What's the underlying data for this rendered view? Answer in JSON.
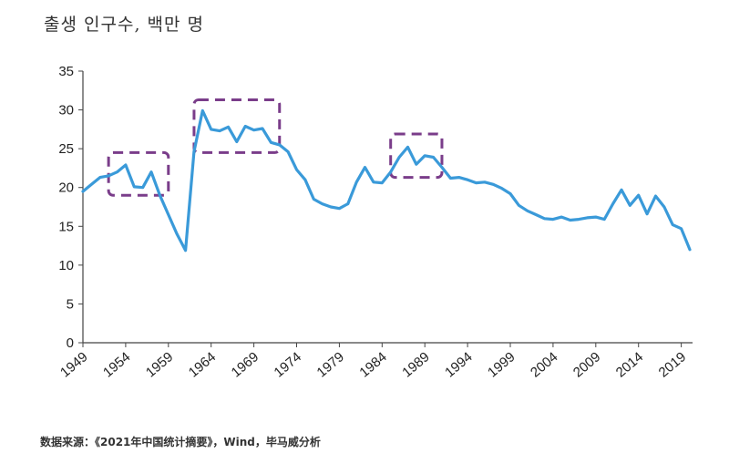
{
  "chart_data": {
    "type": "line",
    "title": "출생 인구수, 백만 명",
    "source": "数据来源：《2021年中国统计摘要》，Wind，毕马威分析",
    "xlabel": "",
    "ylabel": "",
    "ylim": [
      0,
      35
    ],
    "xlim": [
      1949,
      2020
    ],
    "y_ticks": [
      0,
      5,
      10,
      15,
      20,
      25,
      30,
      35
    ],
    "x_ticks": [
      1949,
      1954,
      1959,
      1964,
      1969,
      1974,
      1979,
      1984,
      1989,
      1994,
      1999,
      2004,
      2009,
      2014,
      2019
    ],
    "grid": false,
    "legend": "none",
    "series": [
      {
        "color": "#3a9ad9",
        "x": [
          1949,
          1950,
          1951,
          1952,
          1953,
          1954,
          1955,
          1956,
          1957,
          1958,
          1959,
          1960,
          1961,
          1962,
          1963,
          1964,
          1965,
          1966,
          1967,
          1968,
          1969,
          1970,
          1971,
          1972,
          1973,
          1974,
          1975,
          1976,
          1977,
          1978,
          1979,
          1980,
          1981,
          1982,
          1983,
          1984,
          1985,
          1986,
          1987,
          1988,
          1989,
          1990,
          1991,
          1992,
          1993,
          1994,
          1995,
          1996,
          1997,
          1998,
          1999,
          2000,
          2001,
          2002,
          2003,
          2004,
          2005,
          2006,
          2007,
          2008,
          2009,
          2010,
          2011,
          2012,
          2013,
          2014,
          2015,
          2016,
          2017,
          2018,
          2019,
          2020
        ],
        "values": [
          19.5,
          20.4,
          21.3,
          21.5,
          22.0,
          22.9,
          20.1,
          20.0,
          22.0,
          19.0,
          16.5,
          14.0,
          11.9,
          24.6,
          29.9,
          27.5,
          27.3,
          27.8,
          25.9,
          27.9,
          27.4,
          27.6,
          25.8,
          25.5,
          24.6,
          22.3,
          21.0,
          18.5,
          17.9,
          17.5,
          17.3,
          17.9,
          20.7,
          22.6,
          20.7,
          20.6,
          22.0,
          23.9,
          25.2,
          23.0,
          24.1,
          23.9,
          22.6,
          21.2,
          21.3,
          21.0,
          20.6,
          20.7,
          20.4,
          19.9,
          19.2,
          17.7,
          17.0,
          16.5,
          16.0,
          15.9,
          16.2,
          15.8,
          15.9,
          16.1,
          16.2,
          15.9,
          17.9,
          19.7,
          17.7,
          19.0,
          16.6,
          18.9,
          17.5,
          15.2,
          14.7,
          12.0
        ]
      }
    ],
    "annotations": [
      {
        "type": "dashed-box",
        "color": "#7a3d8a",
        "x_range": [
          1952,
          1959
        ],
        "y_range": [
          19.0,
          24.5
        ]
      },
      {
        "type": "dashed-box",
        "color": "#7a3d8a",
        "x_range": [
          1962,
          1972
        ],
        "y_range": [
          24.5,
          31.3
        ]
      },
      {
        "type": "dashed-box",
        "color": "#7a3d8a",
        "x_range": [
          1985,
          1991
        ],
        "y_range": [
          21.3,
          26.9
        ]
      }
    ]
  }
}
